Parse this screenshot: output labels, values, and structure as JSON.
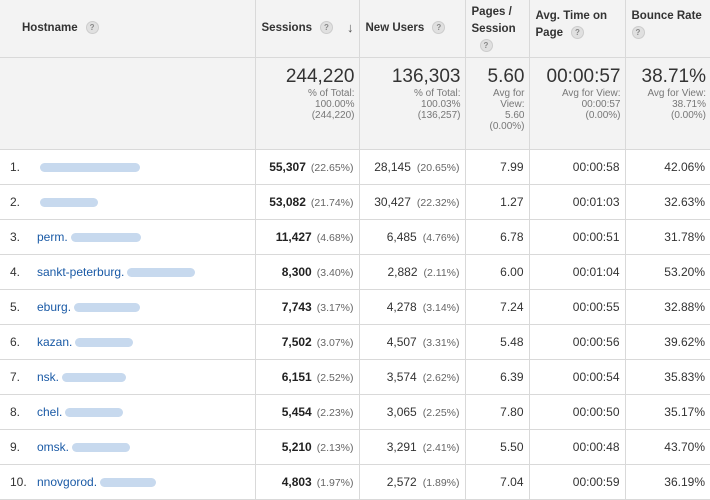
{
  "headers": {
    "hostname": "Hostname",
    "sessions": "Sessions",
    "new_users": "New Users",
    "pages_session": [
      "Pages /",
      "Session"
    ],
    "avg_time": [
      "Avg. Time on",
      "Page"
    ],
    "bounce_rate": "Bounce Rate",
    "help_glyph": "?",
    "sort_glyph": "↓"
  },
  "totals": {
    "sessions": {
      "value": "244,220",
      "sub": [
        "% of Total:",
        "100.00%",
        "(244,220)"
      ]
    },
    "new_users": {
      "value": "136,303",
      "sub": [
        "% of Total:",
        "100.03%",
        "(136,257)"
      ]
    },
    "pages_session": {
      "value": "5.60",
      "sub": [
        "Avg for",
        "View:",
        "5.60",
        "(0.00%)"
      ]
    },
    "avg_time": {
      "value": "00:00:57",
      "sub": [
        "Avg for View:",
        "00:00:57",
        "(0.00%)"
      ]
    },
    "bounce_rate": {
      "value": "38.71%",
      "sub": [
        "Avg for View:",
        "38.71%",
        "(0.00%)"
      ]
    }
  },
  "rows": [
    {
      "idx": "1.",
      "host": "",
      "sessions": "55,307",
      "sessions_pct": "(22.65%)",
      "new_users": "28,145",
      "new_users_pct": "(20.65%)",
      "pages": "7.99",
      "avg_time": "00:00:58",
      "bounce": "42.06%"
    },
    {
      "idx": "2.",
      "host": "",
      "sessions": "53,082",
      "sessions_pct": "(21.74%)",
      "new_users": "30,427",
      "new_users_pct": "(22.32%)",
      "pages": "1.27",
      "avg_time": "00:01:03",
      "bounce": "32.63%"
    },
    {
      "idx": "3.",
      "host": "perm.",
      "sessions": "11,427",
      "sessions_pct": "(4.68%)",
      "new_users": "6,485",
      "new_users_pct": "(4.76%)",
      "pages": "6.78",
      "avg_time": "00:00:51",
      "bounce": "31.78%"
    },
    {
      "idx": "4.",
      "host": "sankt-peterburg.",
      "sessions": "8,300",
      "sessions_pct": "(3.40%)",
      "new_users": "2,882",
      "new_users_pct": "(2.11%)",
      "pages": "6.00",
      "avg_time": "00:01:04",
      "bounce": "53.20%"
    },
    {
      "idx": "5.",
      "host": "eburg.",
      "sessions": "7,743",
      "sessions_pct": "(3.17%)",
      "new_users": "4,278",
      "new_users_pct": "(3.14%)",
      "pages": "7.24",
      "avg_time": "00:00:55",
      "bounce": "32.88%"
    },
    {
      "idx": "6.",
      "host": "kazan.",
      "sessions": "7,502",
      "sessions_pct": "(3.07%)",
      "new_users": "4,507",
      "new_users_pct": "(3.31%)",
      "pages": "5.48",
      "avg_time": "00:00:56",
      "bounce": "39.62%"
    },
    {
      "idx": "7.",
      "host": "nsk.",
      "sessions": "6,151",
      "sessions_pct": "(2.52%)",
      "new_users": "3,574",
      "new_users_pct": "(2.62%)",
      "pages": "6.39",
      "avg_time": "00:00:54",
      "bounce": "35.83%"
    },
    {
      "idx": "8.",
      "host": "chel.",
      "sessions": "5,454",
      "sessions_pct": "(2.23%)",
      "new_users": "3,065",
      "new_users_pct": "(2.25%)",
      "pages": "7.80",
      "avg_time": "00:00:50",
      "bounce": "35.17%"
    },
    {
      "idx": "9.",
      "host": "omsk.",
      "sessions": "5,210",
      "sessions_pct": "(2.13%)",
      "new_users": "3,291",
      "new_users_pct": "(2.41%)",
      "pages": "5.50",
      "avg_time": "00:00:48",
      "bounce": "43.70%"
    },
    {
      "idx": "10.",
      "host": "nnovgorod.",
      "sessions": "4,803",
      "sessions_pct": "(1.97%)",
      "new_users": "2,572",
      "new_users_pct": "(1.89%)",
      "pages": "7.04",
      "avg_time": "00:00:59",
      "bounce": "36.19%"
    }
  ]
}
